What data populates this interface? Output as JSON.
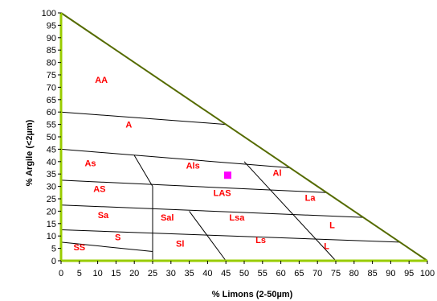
{
  "chart_data": {
    "type": "scatter",
    "subtype": "soil-texture-triangle",
    "xlabel": "% Limons (2-50µm)",
    "ylabel": "% Argile (<2µm)",
    "xlim": [
      0,
      100
    ],
    "ylim": [
      0,
      100
    ],
    "xticks": [
      0,
      5,
      10,
      15,
      20,
      25,
      30,
      35,
      40,
      45,
      50,
      55,
      60,
      65,
      70,
      75,
      80,
      85,
      90,
      95,
      100
    ],
    "yticks": [
      0,
      5,
      10,
      15,
      20,
      25,
      30,
      35,
      40,
      45,
      50,
      55,
      60,
      65,
      70,
      75,
      80,
      85,
      90,
      95,
      100
    ],
    "grid": false,
    "colors": {
      "triangle_edge": "#556b00",
      "axis_line": "#99cc00",
      "zone_line": "#000000",
      "zone_label": "#ff0000",
      "point": "#ff00ff"
    },
    "triangle": [
      [
        0,
        0
      ],
      [
        100,
        0
      ],
      [
        0,
        100
      ]
    ],
    "boundaries": [
      [
        [
          0,
          60
        ],
        [
          45,
          55
        ]
      ],
      [
        [
          0,
          45
        ],
        [
          62.5,
          37.5
        ]
      ],
      [
        [
          0,
          32.5
        ],
        [
          72.5,
          27.5
        ]
      ],
      [
        [
          0,
          22.5
        ],
        [
          82.5,
          17.5
        ]
      ],
      [
        [
          0,
          12.5
        ],
        [
          92.5,
          7.5
        ]
      ],
      [
        [
          0,
          7.5
        ],
        [
          25,
          3.75
        ]
      ],
      [
        [
          25,
          0
        ],
        [
          25,
          30
        ]
      ],
      [
        [
          20,
          42.5
        ],
        [
          25,
          30
        ]
      ],
      [
        [
          35,
          20
        ],
        [
          45,
          0
        ]
      ],
      [
        [
          50,
          40
        ],
        [
          75,
          0
        ]
      ]
    ],
    "zones": [
      {
        "label": "AA",
        "x": 11,
        "y": 73
      },
      {
        "label": "A",
        "x": 18.5,
        "y": 55
      },
      {
        "label": "As",
        "x": 8,
        "y": 39.5
      },
      {
        "label": "Als",
        "x": 36,
        "y": 38.5
      },
      {
        "label": "Al",
        "x": 59,
        "y": 35.5
      },
      {
        "label": "AS",
        "x": 10.5,
        "y": 29
      },
      {
        "label": "LAS",
        "x": 44,
        "y": 27.5
      },
      {
        "label": "La",
        "x": 68,
        "y": 25.5
      },
      {
        "label": "Sa",
        "x": 11.5,
        "y": 18.5
      },
      {
        "label": "Sal",
        "x": 29,
        "y": 17.5
      },
      {
        "label": "Lsa",
        "x": 48,
        "y": 17.5
      },
      {
        "label": "S",
        "x": 15.5,
        "y": 9.5
      },
      {
        "label": "L",
        "x": 74,
        "y": 14.5
      },
      {
        "label": "SS",
        "x": 5,
        "y": 5.5
      },
      {
        "label": "Sl",
        "x": 32.5,
        "y": 7
      },
      {
        "label": "Ls",
        "x": 54.5,
        "y": 8.5
      },
      {
        "label": "L",
        "x": 72.5,
        "y": 6
      }
    ],
    "points": [
      {
        "x": 45.5,
        "y": 34.5
      }
    ]
  }
}
